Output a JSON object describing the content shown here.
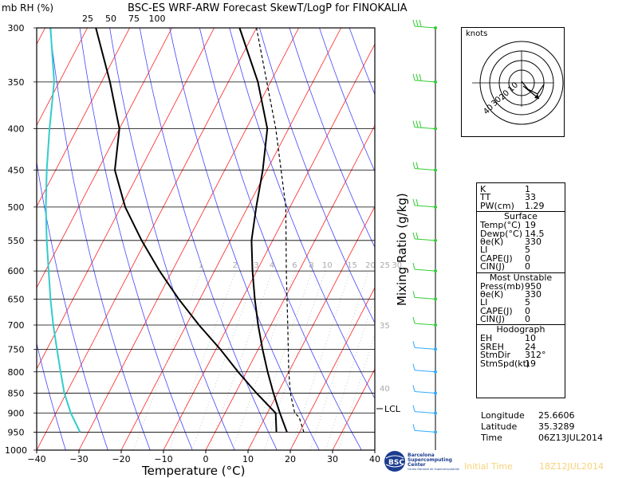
{
  "header": {
    "left_label": "mb RH (%)",
    "title": "BSC-ES WRF-ARW Forecast SkewT/LogP for FINOKALIA"
  },
  "chart_data": {
    "type": "skewt",
    "xlabel": "Temperature (°C)",
    "right_axis_label": "Mixing Ratio (g/kg)",
    "pressure_levels": [
      300,
      350,
      400,
      450,
      500,
      550,
      600,
      650,
      700,
      750,
      800,
      850,
      900,
      950,
      1000
    ],
    "temperature_ticks": [
      -40,
      -30,
      -20,
      -10,
      0,
      10,
      20,
      30,
      40
    ],
    "rh_ticks": [
      25,
      50,
      75,
      100
    ],
    "mixing_ratio_labels": [
      "1",
      "2",
      "3",
      "4",
      "6",
      "8",
      "10",
      "15",
      "20",
      "25",
      "30"
    ],
    "theta_e_labels": [
      "35",
      "40"
    ],
    "lcl_label": "LCL",
    "xlim": [
      -40,
      40
    ],
    "ylim": [
      1000,
      300
    ],
    "temperature_profile": [
      {
        "p": 950,
        "t": 17
      },
      {
        "p": 900,
        "t": 13
      },
      {
        "p": 850,
        "t": 9
      },
      {
        "p": 800,
        "t": 5
      },
      {
        "p": 750,
        "t": 1
      },
      {
        "p": 700,
        "t": -3
      },
      {
        "p": 650,
        "t": -7
      },
      {
        "p": 600,
        "t": -11
      },
      {
        "p": 550,
        "t": -15
      },
      {
        "p": 500,
        "t": -18
      },
      {
        "p": 450,
        "t": -21
      },
      {
        "p": 400,
        "t": -25
      },
      {
        "p": 350,
        "t": -33
      },
      {
        "p": 300,
        "t": -44
      }
    ],
    "dewpoint_profile": [
      {
        "p": 950,
        "t": 14.5
      },
      {
        "p": 900,
        "t": 12
      },
      {
        "p": 850,
        "t": 5
      },
      {
        "p": 800,
        "t": -2
      },
      {
        "p": 750,
        "t": -9
      },
      {
        "p": 700,
        "t": -17
      },
      {
        "p": 650,
        "t": -25
      },
      {
        "p": 600,
        "t": -33
      },
      {
        "p": 550,
        "t": -41
      },
      {
        "p": 500,
        "t": -49
      },
      {
        "p": 450,
        "t": -56
      },
      {
        "p": 400,
        "t": -60
      },
      {
        "p": 350,
        "t": -68
      },
      {
        "p": 300,
        "t": -78
      }
    ],
    "parcel_path": [
      {
        "p": 950,
        "t": 21
      },
      {
        "p": 910,
        "t": 18
      },
      {
        "p": 900,
        "t": 16.5
      },
      {
        "p": 850,
        "t": 13
      },
      {
        "p": 800,
        "t": 10
      },
      {
        "p": 700,
        "t": 4
      },
      {
        "p": 600,
        "t": -3
      },
      {
        "p": 500,
        "t": -11
      },
      {
        "p": 400,
        "t": -23
      },
      {
        "p": 300,
        "t": -40
      }
    ],
    "relative_humidity": [
      {
        "p": 950,
        "rh": 40
      },
      {
        "p": 900,
        "rh": 30
      },
      {
        "p": 850,
        "rh": 23
      },
      {
        "p": 800,
        "rh": 19
      },
      {
        "p": 750,
        "rh": 15
      },
      {
        "p": 700,
        "rh": 11
      },
      {
        "p": 650,
        "rh": 8
      },
      {
        "p": 600,
        "rh": 6
      },
      {
        "p": 550,
        "rh": 4
      },
      {
        "p": 500,
        "rh": 3
      },
      {
        "p": 450,
        "rh": 4
      },
      {
        "p": 400,
        "rh": 7
      },
      {
        "p": 350,
        "rh": 12
      },
      {
        "p": 300,
        "rh": 8
      }
    ],
    "hodograph": {
      "rings_label": "knots",
      "ring_labels": [
        "10",
        "20",
        "30",
        "40"
      ]
    }
  },
  "indices": {
    "general": [
      {
        "label": "K",
        "value": "1"
      },
      {
        "label": "TT",
        "value": "33"
      },
      {
        "label": "PW(cm)",
        "value": "1.29"
      }
    ],
    "surface_header": "Surface",
    "surface": [
      {
        "label": "Temp(°C)",
        "value": "19"
      },
      {
        "label": "Dewp(°C)",
        "value": "14.5"
      },
      {
        "label": "θe(K)",
        "value": "330"
      },
      {
        "label": "LI",
        "value": "5"
      },
      {
        "label": "CAPE(J)",
        "value": "0"
      },
      {
        "label": "CIN(J)",
        "value": "0"
      }
    ],
    "mu_header": "Most Unstable",
    "most_unstable": [
      {
        "label": "Press(mb)",
        "value": "950"
      },
      {
        "label": "θe(K)",
        "value": "330"
      },
      {
        "label": "LI",
        "value": "5"
      },
      {
        "label": "CAPE(J)",
        "value": "0"
      },
      {
        "label": "CIN(J)",
        "value": "0"
      }
    ],
    "hodo_header": "Hodograph",
    "hodograph": [
      {
        "label": "EH",
        "value": "10"
      },
      {
        "label": "SREH",
        "value": "24"
      },
      {
        "label": "StmDir",
        "value": "312°"
      },
      {
        "label": "StmSpd(kt)",
        "value": "19"
      }
    ]
  },
  "location": [
    {
      "label": "Longitude",
      "value": "25.6606"
    },
    {
      "label": "Latitude",
      "value": "35.3289"
    },
    {
      "label": "Time",
      "value": "06Z13JUL2014"
    }
  ],
  "logo": {
    "initials": "BSC",
    "line1": "Barcelona",
    "line2": "Supercomputing",
    "line3": "Center",
    "line4": "Centro Nacional de Supercomputación"
  },
  "footer": {
    "initial_time_label": "Initial Time",
    "initial_time_value": "18Z12JUL2014"
  },
  "colors": {
    "isotherm": "#ff2020",
    "dry_adiabat": "#4444ff",
    "mixing_ratio": "#bbbbbb",
    "temperature": "#000000",
    "dewpoint": "#000000",
    "rh": "#33cccc",
    "wind_barb_upper": "#33cc33",
    "wind_barb_lower": "#33aaff",
    "init_time": "#f7d27a"
  }
}
